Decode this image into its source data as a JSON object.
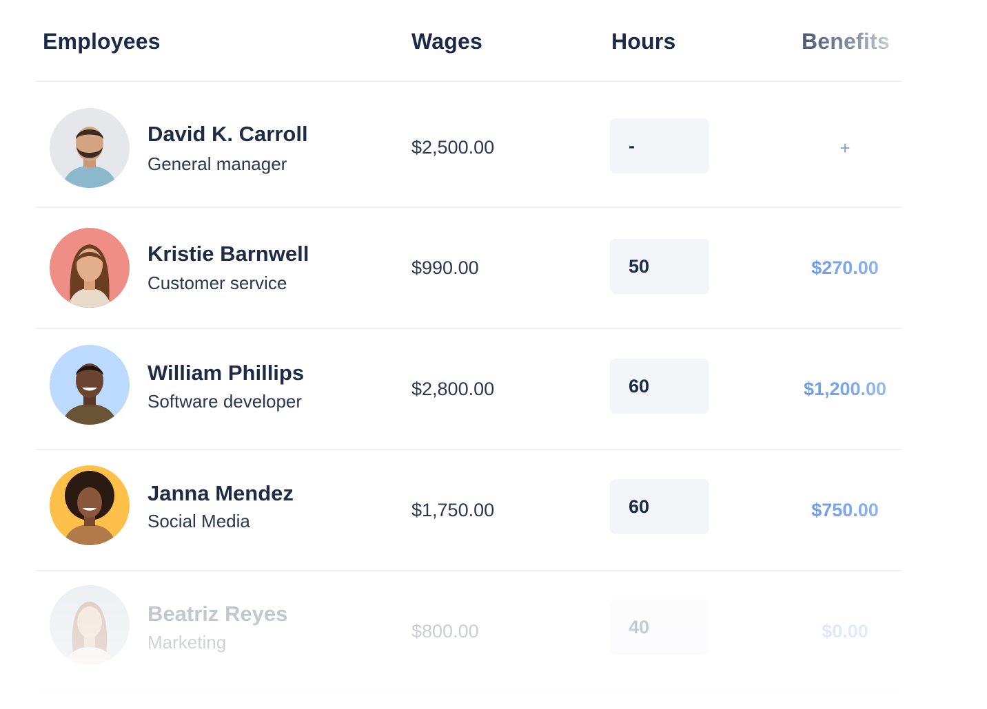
{
  "header": {
    "employees": "Employees",
    "wages": "Wages",
    "hours": "Hours",
    "benefits": "Benefits"
  },
  "rows": [
    {
      "name": "David K. Carroll",
      "role": "General manager",
      "wage": "$2,500.00",
      "hours": "-",
      "benefit": "+",
      "avatar_bg": "#e6e7ea"
    },
    {
      "name": "Kristie Barnwell",
      "role": "Customer service",
      "wage": "$990.00",
      "hours": "50",
      "benefit": "$270.00",
      "avatar_bg": "#ee8e87"
    },
    {
      "name": "William Phillips",
      "role": "Software developer",
      "wage": "$2,800.00",
      "hours": "60",
      "benefit": "$1,200.00",
      "avatar_bg": "#bcd9ff"
    },
    {
      "name": "Janna Mendez",
      "role": "Social Media",
      "wage": "$1,750.00",
      "hours": "60",
      "benefit": "$750.00",
      "avatar_bg": "#ffc04a"
    },
    {
      "name": "Beatriz Reyes",
      "role": "Marketing",
      "wage": "$800.00",
      "hours": "40",
      "benefit": "$0.00",
      "avatar_bg": "#c6ced6"
    }
  ],
  "colors": {
    "heading": "#1b2a48",
    "benefit_accent": "#5b8fe4",
    "hours_box": "#f3f5f9",
    "divider": "#eef0f4"
  }
}
